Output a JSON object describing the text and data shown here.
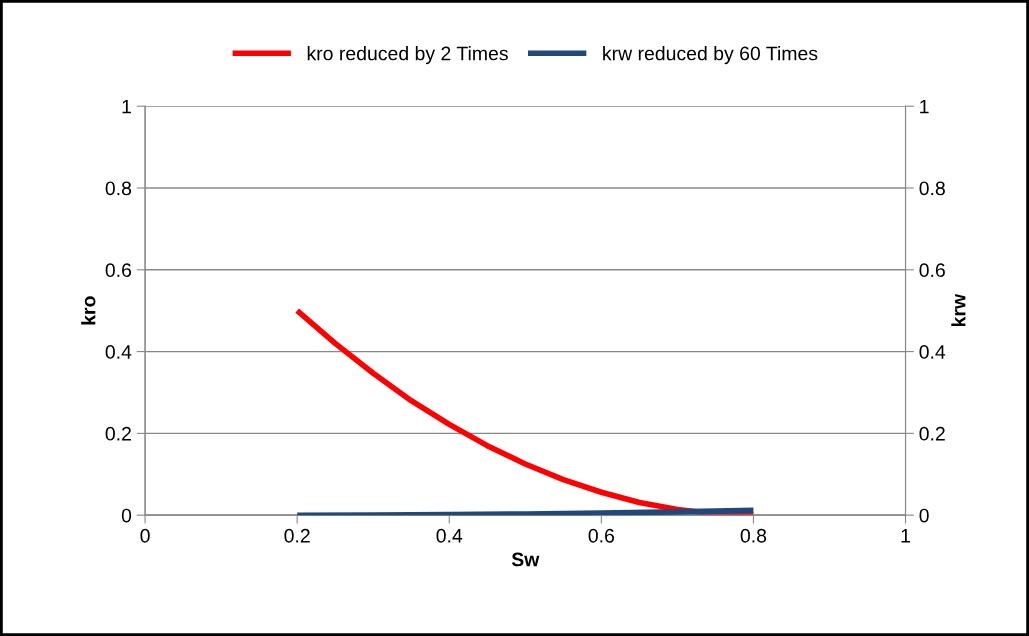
{
  "chart_data": {
    "type": "line",
    "xlabel": "Sw",
    "ylabel": "kro",
    "y2label": "krw",
    "series": [
      {
        "name": "kro reduced by 2 Times",
        "color": "#ff0000",
        "x": [
          0.2,
          0.25,
          0.3,
          0.35,
          0.4,
          0.45,
          0.5,
          0.55,
          0.6,
          0.65,
          0.7,
          0.75,
          0.8
        ],
        "values": [
          0.5,
          0.42,
          0.347,
          0.28,
          0.222,
          0.17,
          0.125,
          0.087,
          0.056,
          0.031,
          0.014,
          0.003,
          0
        ]
      },
      {
        "name": "krw reduced by 60 Times",
        "color": "#1f497d",
        "axis": "y2",
        "x": [
          0.2,
          0.3,
          0.4,
          0.5,
          0.6,
          0.7,
          0.8
        ],
        "values": [
          0,
          0.0003,
          0.0013,
          0.003,
          0.0052,
          0.008,
          0.0117
        ]
      }
    ],
    "xlim": [
      0,
      1
    ],
    "xticks": [
      0,
      0.2,
      0.4,
      0.6,
      0.8,
      1
    ],
    "ylim": [
      0,
      1
    ],
    "yticks": [
      0,
      0.2,
      0.4,
      0.6,
      0.8,
      1
    ],
    "y2lim": [
      0,
      1
    ],
    "y2ticks": [
      0,
      0.2,
      0.4,
      0.6,
      0.8,
      1
    ],
    "grid": "y",
    "legend": "top",
    "marker": "none",
    "line_style": "solid"
  }
}
